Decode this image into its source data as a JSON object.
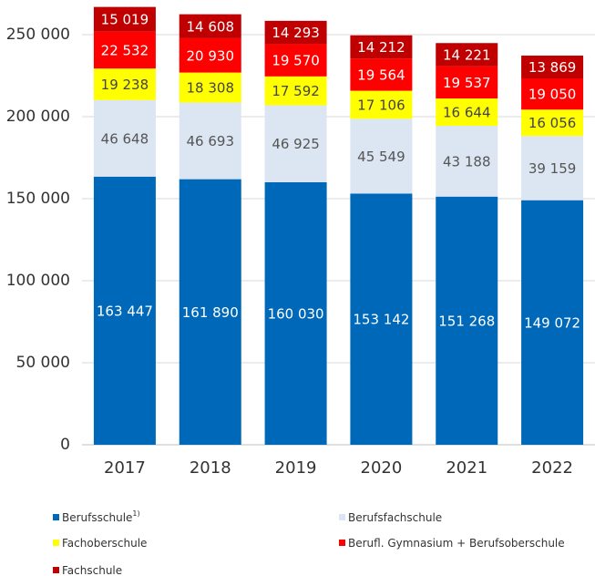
{
  "chart_data": {
    "type": "stacked_bar",
    "categories": [
      "2017",
      "2018",
      "2019",
      "2020",
      "2021",
      "2022"
    ],
    "series": [
      {
        "name": "Berufsschule",
        "name_superscript": "1)",
        "color": "#0068b8",
        "label_color": "#ffffff",
        "values": [
          163447,
          161890,
          160030,
          153142,
          151268,
          149072
        ],
        "value_labels": [
          "163 447",
          "161 890",
          "160 030",
          "153 142",
          "151 268",
          "149 072"
        ]
      },
      {
        "name": "Berufsfachschule",
        "color": "#dce6f2",
        "label_color": "#555555",
        "values": [
          46648,
          46693,
          46925,
          45549,
          43188,
          39159
        ],
        "value_labels": [
          "46 648",
          "46 693",
          "46 925",
          "45 549",
          "43 188",
          "39 159"
        ]
      },
      {
        "name": "Fachoberschule",
        "color": "#ffff00",
        "label_color": "#444444",
        "values": [
          19238,
          18308,
          17592,
          17106,
          16644,
          16056
        ],
        "value_labels": [
          "19 238",
          "18 308",
          "17 592",
          "17 106",
          "16 644",
          "16 056"
        ]
      },
      {
        "name": "Berufl. Gymnasium + Berufsoberschule",
        "color": "#ff0000",
        "label_color": "#ffffff",
        "values": [
          22532,
          20930,
          19570,
          19564,
          19537,
          19050
        ],
        "value_labels": [
          "22 532",
          "20 930",
          "19 570",
          "19 564",
          "19 537",
          "19 050"
        ]
      },
      {
        "name": "Fachschule",
        "color": "#c00000",
        "label_color": "#ffffff",
        "values": [
          15019,
          14608,
          14293,
          14212,
          14221,
          13869
        ],
        "value_labels": [
          "15 019",
          "14 608",
          "14 293",
          "14 212",
          "14 221",
          "13 869"
        ]
      }
    ],
    "ylim": [
      0,
      270000
    ],
    "yticks": [
      0,
      {
        "value": 50000,
        "label": "50 000"
      },
      {
        "value": 100000,
        "label": "100 000"
      },
      {
        "value": 150000,
        "label": "150 000"
      },
      {
        "value": 200000,
        "label": "200 000"
      },
      {
        "value": 250000,
        "label": "250 000"
      }
    ],
    "grid": true
  }
}
